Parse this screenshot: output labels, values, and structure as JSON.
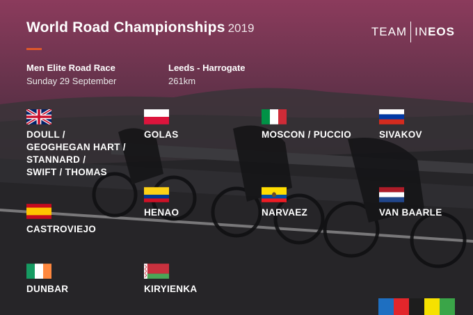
{
  "header": {
    "title": "World Road Championships",
    "year": "2019"
  },
  "logo": {
    "left": "TEAM",
    "right_a": "IN",
    "right_b": "EOS"
  },
  "race": {
    "name": "Men Elite Road Race",
    "date": "Sunday 29 September",
    "route": "Leeds - Harrogate",
    "distance": "261km"
  },
  "riders": [
    {
      "flag": "uk-flag-icon",
      "names": "DOULL /\nGEOGHEGAN HART /\nSTANNARD /\nSWIFT / THOMAS"
    },
    {
      "flag": "poland-flag-icon",
      "names": "GOLAS"
    },
    {
      "flag": "italy-flag-icon",
      "names": "MOSCON / PUCCIO"
    },
    {
      "flag": "russia-flag-icon",
      "names": "SIVAKOV"
    },
    {
      "flag": "colombia-flag-icon",
      "names": "HENAO"
    },
    {
      "flag": "ecuador-flag-icon",
      "names": "NARVAEZ"
    },
    {
      "flag": "netherlands-flag-icon",
      "names": "VAN BAARLE"
    },
    {
      "flag": "spain-flag-icon",
      "names": "CASTROVIEJO"
    },
    {
      "flag": "ireland-flag-icon",
      "names": "DUNBAR"
    },
    {
      "flag": "belarus-flag-icon",
      "names": "KIRYIENKA"
    }
  ],
  "rainbow_colors": [
    "#1e6fc1",
    "#e2262b",
    "#1d1d1d",
    "#f6e100",
    "#3aa548"
  ],
  "accent_color": "#e0582a"
}
